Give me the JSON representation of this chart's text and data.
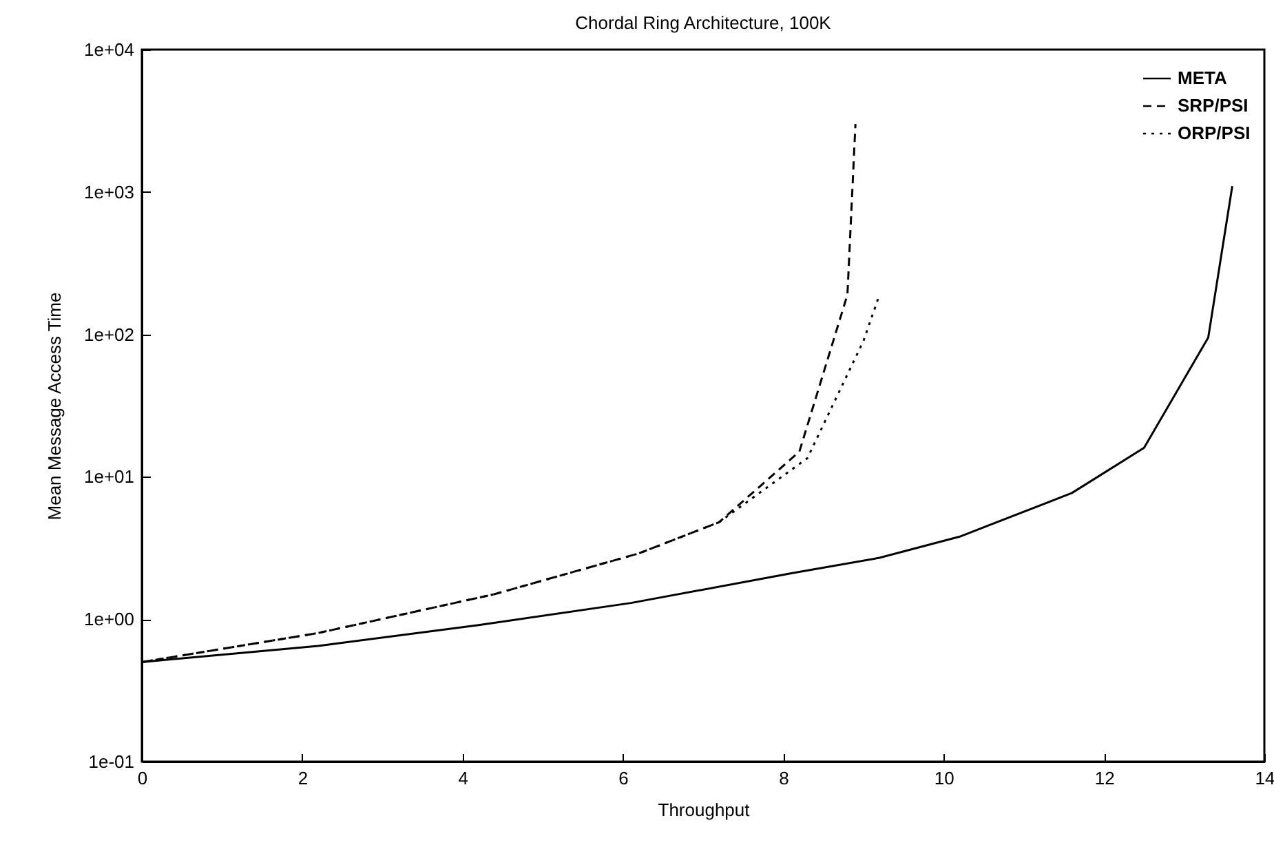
{
  "chart_data": {
    "type": "line",
    "title": "Chordal Ring Architecture, 100K",
    "xlabel": "Throughput",
    "ylabel": "Mean Message Access Time",
    "log": "y",
    "xlim": [
      0,
      14
    ],
    "xticks": [
      0,
      2,
      4,
      6,
      8,
      10,
      12,
      14
    ],
    "ylim": [
      0.1,
      10000
    ],
    "yticks": [
      {
        "value": 0.1,
        "label": "1e-01"
      },
      {
        "value": 1,
        "label": "1e+00"
      },
      {
        "value": 10,
        "label": "1e+01"
      },
      {
        "value": 100,
        "label": "1e+02"
      },
      {
        "value": 1000,
        "label": "1e+03"
      },
      {
        "value": 10000,
        "label": "1e+04"
      }
    ],
    "grid": false,
    "legend": "top right",
    "marker": "none",
    "series": [
      {
        "name": "META",
        "color": "#000000",
        "line_style": "solid",
        "x": [
          0,
          2.2,
          4.2,
          6.1,
          8.1,
          9.2,
          10.2,
          11.6,
          12.5,
          13.3,
          13.6
        ],
        "values": [
          0.5,
          0.65,
          0.91,
          1.3,
          2.1,
          2.7,
          3.8,
          7.7,
          16,
          95,
          1100
        ]
      },
      {
        "name": "SRP/PSI",
        "color": "#000000",
        "line_style": "dashed",
        "x": [
          0,
          2.2,
          4.4,
          6.2,
          7.2,
          8.2,
          8.8,
          8.9
        ],
        "values": [
          0.5,
          0.8,
          1.5,
          2.9,
          4.8,
          15,
          190,
          3000
        ]
      },
      {
        "name": "ORP/PSI",
        "color": "#000000",
        "line_style": "dotted",
        "x": [
          0,
          2.2,
          4.4,
          6.2,
          7.2,
          8.3,
          9.0,
          9.2
        ],
        "values": [
          0.5,
          0.8,
          1.5,
          2.9,
          4.8,
          13.5,
          90,
          190
        ]
      }
    ]
  }
}
